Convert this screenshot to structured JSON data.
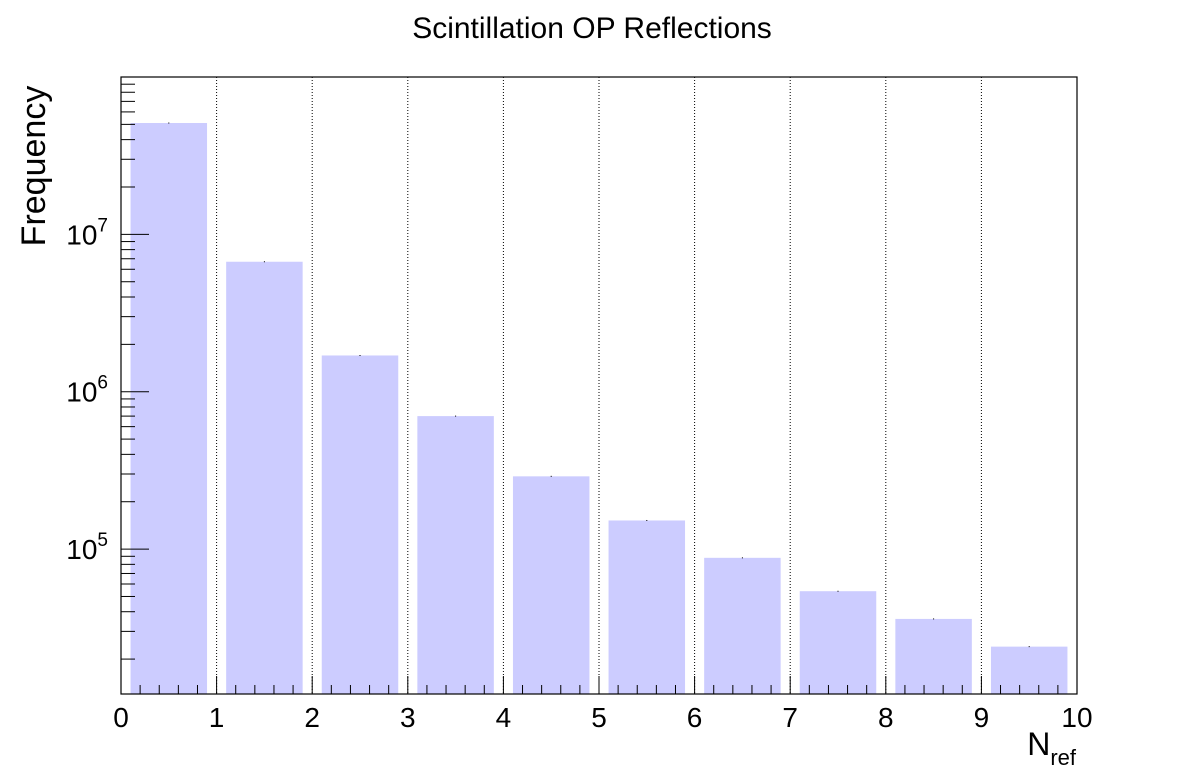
{
  "chart_data": {
    "type": "bar",
    "title": "Scintillation OP Reflections",
    "xlabel": {
      "main": "N",
      "subscript": "ref"
    },
    "ylabel": "Frequency",
    "categories": [
      "0",
      "1",
      "2",
      "3",
      "4",
      "5",
      "6",
      "7",
      "8",
      "9"
    ],
    "x": [
      0.5,
      1.5,
      2.5,
      3.5,
      4.5,
      5.5,
      6.5,
      7.5,
      8.5,
      9.5
    ],
    "values": [
      51000000,
      6700000,
      1700000,
      700000,
      290000,
      152000,
      88000,
      54000,
      36000,
      24000
    ],
    "xlim": [
      0,
      10
    ],
    "ylim": [
      12000,
      100000000
    ],
    "yscale": "log",
    "xticks": [
      "0",
      "1",
      "2",
      "3",
      "4",
      "5",
      "6",
      "7",
      "8",
      "9",
      "10"
    ],
    "yticks": [
      {
        "base": "10",
        "exp": "5",
        "value": 100000
      },
      {
        "base": "10",
        "exp": "6",
        "value": 1000000
      },
      {
        "base": "10",
        "exp": "7",
        "value": 10000000
      }
    ],
    "grid": {
      "x": true,
      "y": false,
      "style": "dotted"
    },
    "bar_color": "#ccccff",
    "legend": "none"
  }
}
